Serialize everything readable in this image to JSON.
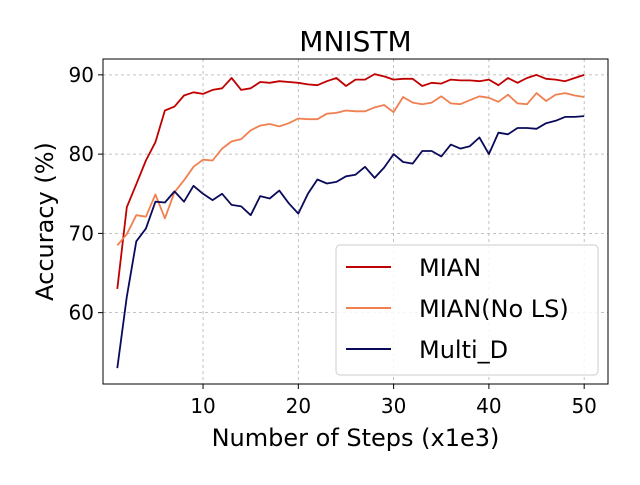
{
  "chart_data": {
    "type": "line",
    "title": "MNISTM",
    "xlabel": "Number of Steps (x1e3)",
    "ylabel": "Accuracy (%)",
    "xlim": [
      -0.5,
      52.5
    ],
    "ylim": [
      51,
      92
    ],
    "xticks": [
      10,
      20,
      30,
      40,
      50
    ],
    "yticks": [
      60,
      70,
      80,
      90
    ],
    "grid": true,
    "legend_position": "lower-right",
    "x": [
      1,
      2,
      3,
      4,
      5,
      6,
      7,
      8,
      9,
      10,
      11,
      12,
      13,
      14,
      15,
      16,
      17,
      18,
      19,
      20,
      21,
      22,
      23,
      24,
      25,
      26,
      27,
      28,
      29,
      30,
      31,
      32,
      33,
      34,
      35,
      36,
      37,
      38,
      39,
      40,
      41,
      42,
      43,
      44,
      45,
      46,
      47,
      48,
      49,
      50
    ],
    "series": [
      {
        "name": "MIAN",
        "color": "#c00000",
        "values": [
          63.0,
          73.3,
          76.2,
          79.2,
          81.5,
          85.5,
          86.0,
          87.4,
          87.8,
          87.6,
          88.1,
          88.3,
          89.6,
          88.1,
          88.3,
          89.1,
          89.0,
          89.2,
          89.1,
          89.0,
          88.8,
          88.7,
          89.2,
          89.6,
          88.6,
          89.4,
          89.4,
          90.1,
          89.8,
          89.4,
          89.5,
          89.5,
          88.6,
          89.0,
          88.9,
          89.4,
          89.3,
          89.3,
          89.2,
          89.4,
          88.7,
          89.6,
          89.0,
          89.6,
          90.0,
          89.5,
          89.4,
          89.2,
          89.6,
          90.0
        ]
      },
      {
        "name": "MIAN(No LS)",
        "color": "#f08050",
        "values": [
          68.5,
          69.9,
          72.3,
          72.1,
          74.9,
          71.9,
          75.2,
          76.7,
          78.4,
          79.3,
          79.2,
          80.7,
          81.6,
          81.9,
          83.0,
          83.6,
          83.8,
          83.5,
          83.9,
          84.5,
          84.4,
          84.4,
          85.1,
          85.2,
          85.5,
          85.4,
          85.4,
          85.9,
          86.2,
          85.3,
          87.2,
          86.5,
          86.3,
          86.5,
          87.3,
          86.4,
          86.3,
          86.8,
          87.3,
          87.1,
          86.6,
          87.5,
          86.4,
          86.3,
          87.7,
          86.7,
          87.5,
          87.7,
          87.4,
          87.2
        ]
      },
      {
        "name": "Multi_D",
        "color": "#0a0a5a",
        "values": [
          53.0,
          62.0,
          69.0,
          70.6,
          74.0,
          73.9,
          75.3,
          74.0,
          76.0,
          75.0,
          74.2,
          75.0,
          73.6,
          73.4,
          72.3,
          74.7,
          74.4,
          75.4,
          73.8,
          72.5,
          75.0,
          76.8,
          76.3,
          76.5,
          77.2,
          77.4,
          78.4,
          77.0,
          78.3,
          80.0,
          79.0,
          78.8,
          80.4,
          80.4,
          79.7,
          81.2,
          80.7,
          81.0,
          82.1,
          80.0,
          82.7,
          82.5,
          83.3,
          83.3,
          83.2,
          83.9,
          84.2,
          84.7,
          84.7,
          84.8
        ]
      }
    ]
  }
}
